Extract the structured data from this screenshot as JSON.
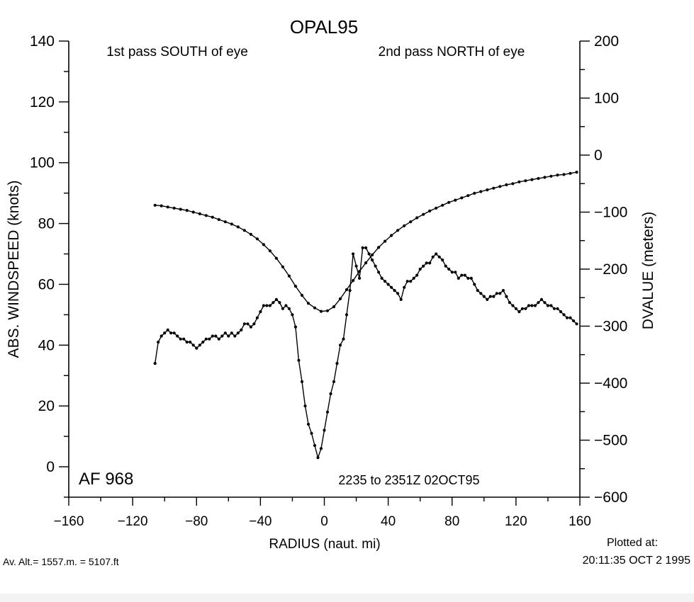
{
  "chart_data": {
    "type": "line",
    "title": "OPAL95",
    "annotations": {
      "left_pass": "1st pass SOUTH of eye",
      "right_pass": "2nd pass NORTH of eye",
      "aircraft": "AF 968",
      "time_range": "2235 to 2351Z 02OCT95",
      "altitude": "Av. Alt.= 1557.m. =  5107.ft",
      "plotted_at_label": "Plotted at:",
      "plotted_at_time": "20:11:35 OCT  2 1995"
    },
    "xlabel": "RADIUS (naut. mi)",
    "ylabel": "ABS. WINDSPEED (knots)",
    "y2label": "DVALUE (meters)",
    "xlim": [
      -160,
      160
    ],
    "ylim": [
      -10,
      140
    ],
    "y2lim": [
      -600,
      200
    ],
    "xticks": [
      -160,
      -120,
      -80,
      -40,
      0,
      40,
      80,
      120,
      160
    ],
    "xtick_labels": [
      "−160",
      "−120",
      "−80",
      "−40",
      "0",
      "40",
      "80",
      "120",
      "160"
    ],
    "yticks": [
      0,
      20,
      40,
      60,
      80,
      100,
      120,
      140
    ],
    "ytick_labels": [
      "0",
      "20",
      "40",
      "60",
      "80",
      "100",
      "120",
      "140"
    ],
    "y2ticks": [
      -600,
      -500,
      -400,
      -300,
      -200,
      -100,
      0,
      100,
      200
    ],
    "y2tick_labels": [
      "−600",
      "−500",
      "−400",
      "−300",
      "−200",
      "−100",
      "0",
      "100",
      "200"
    ],
    "grid": false,
    "series": [
      {
        "axis": "left",
        "x": [
          -106,
          -104,
          -102,
          -100,
          -98,
          -96,
          -94,
          -92,
          -90,
          -88,
          -86,
          -84,
          -82,
          -80,
          -78,
          -76,
          -74,
          -72,
          -70,
          -68,
          -66,
          -64,
          -62,
          -60,
          -58,
          -56,
          -54,
          -52,
          -50,
          -48,
          -46,
          -44,
          -42,
          -40,
          -38,
          -36,
          -34,
          -32,
          -30,
          -28,
          -26,
          -24,
          -22,
          -20,
          -18,
          -16,
          -14,
          -12,
          -10,
          -8,
          -6,
          -4,
          -2,
          0,
          2,
          4,
          6,
          8,
          10,
          12,
          14,
          16,
          18,
          20,
          22,
          24,
          26,
          28,
          30,
          32,
          34,
          36,
          38,
          40,
          42,
          44,
          46,
          48,
          50,
          52,
          54,
          56,
          58,
          60,
          62,
          64,
          66,
          68,
          70,
          72,
          74,
          76,
          78,
          80,
          82,
          84,
          86,
          88,
          90,
          92,
          94,
          96,
          98,
          100,
          102,
          104,
          106,
          108,
          110,
          112,
          114,
          116,
          118,
          120,
          122,
          124,
          126,
          128,
          130,
          132,
          134,
          136,
          138,
          140,
          142,
          144,
          146,
          148,
          150,
          152,
          154,
          156,
          158
        ],
        "values": [
          34,
          41,
          43,
          44,
          45,
          44,
          44,
          43,
          42,
          42,
          41,
          41,
          40,
          39,
          40,
          41,
          42,
          42,
          43,
          43,
          42,
          43,
          44,
          43,
          44,
          43,
          44,
          45,
          47,
          47,
          46,
          47,
          49,
          51,
          53,
          53,
          53,
          54,
          55,
          54,
          52,
          53,
          52,
          50,
          46,
          35,
          28,
          20,
          14,
          11,
          7,
          3,
          6,
          12,
          18,
          24,
          28,
          34,
          40,
          42,
          50,
          58,
          70,
          66,
          62,
          72,
          72,
          70,
          68,
          66,
          64,
          62,
          61,
          60,
          59,
          58,
          57,
          55,
          59,
          61,
          61,
          62,
          63,
          65,
          66,
          67,
          67,
          69,
          70,
          69,
          68,
          66,
          65,
          64,
          64,
          62,
          63,
          63,
          62,
          62,
          60,
          58,
          57,
          56,
          55,
          56,
          56,
          57,
          57,
          58,
          56,
          54,
          53,
          52,
          51,
          52,
          52,
          53,
          53,
          53,
          54,
          55,
          54,
          53,
          53,
          52,
          52,
          51,
          50,
          49,
          49,
          48,
          47
        ]
      },
      {
        "axis": "right",
        "x": [
          -106,
          -102,
          -98,
          -94,
          -90,
          -86,
          -82,
          -78,
          -74,
          -70,
          -66,
          -62,
          -58,
          -54,
          -50,
          -46,
          -42,
          -38,
          -34,
          -30,
          -26,
          -22,
          -18,
          -14,
          -10,
          -6,
          -2,
          2,
          6,
          10,
          14,
          18,
          22,
          26,
          30,
          34,
          38,
          42,
          46,
          50,
          54,
          58,
          62,
          66,
          70,
          74,
          78,
          82,
          86,
          90,
          94,
          98,
          102,
          106,
          110,
          114,
          118,
          122,
          126,
          130,
          134,
          138,
          142,
          146,
          150,
          154,
          158
        ],
        "values": [
          -88,
          -89,
          -91,
          -93,
          -95,
          -97,
          -100,
          -103,
          -106,
          -109,
          -113,
          -117,
          -121,
          -126,
          -132,
          -139,
          -147,
          -157,
          -168,
          -181,
          -196,
          -212,
          -230,
          -246,
          -260,
          -268,
          -274,
          -273,
          -266,
          -252,
          -236,
          -220,
          -204,
          -189,
          -175,
          -162,
          -151,
          -141,
          -132,
          -124,
          -117,
          -110,
          -104,
          -98,
          -93,
          -88,
          -83,
          -79,
          -75,
          -71,
          -67,
          -64,
          -61,
          -58,
          -55,
          -52,
          -50,
          -47,
          -45,
          -43,
          -41,
          -39,
          -37,
          -35,
          -34,
          -32,
          -30
        ]
      }
    ]
  }
}
